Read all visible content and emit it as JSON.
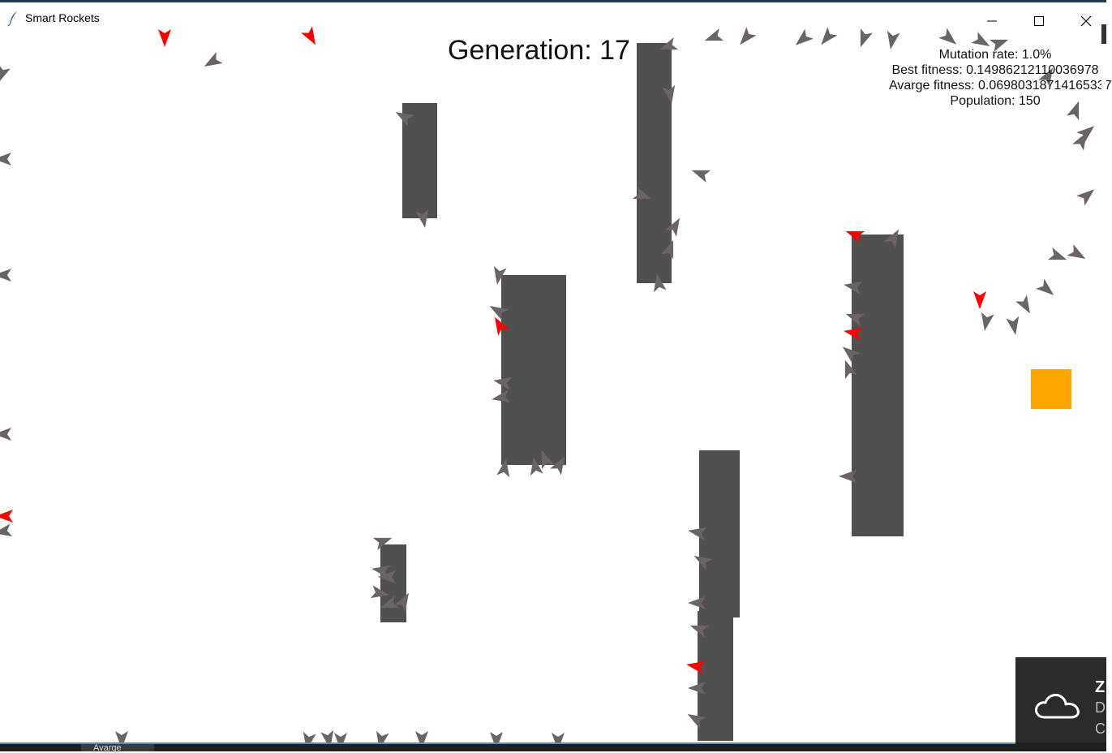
{
  "window": {
    "title": "Smart Rockets",
    "icon": "feather-icon",
    "controls": [
      "minimize-icon",
      "maximize-icon",
      "close-icon"
    ]
  },
  "hud": {
    "generation": "Generation: 17",
    "mutation_rate": "Mutation rate: 1.0%",
    "best_fitness": "Best fitness: 0.14986212110036978",
    "average_fitness": "Avarge fitness: 0.06980318714165337",
    "population": "Population: 150"
  },
  "colors": {
    "obstacle": "#515050",
    "rocket": "#6b6466",
    "best_rocket": "#ff0000",
    "target": "#ffa500",
    "background": "#ffffff"
  },
  "notification": {
    "icon": "onedrive-cloud-icon",
    "line1": "Z",
    "line2": "D",
    "line3": "C"
  },
  "taskbar": {
    "item_label": "Avarge"
  }
}
